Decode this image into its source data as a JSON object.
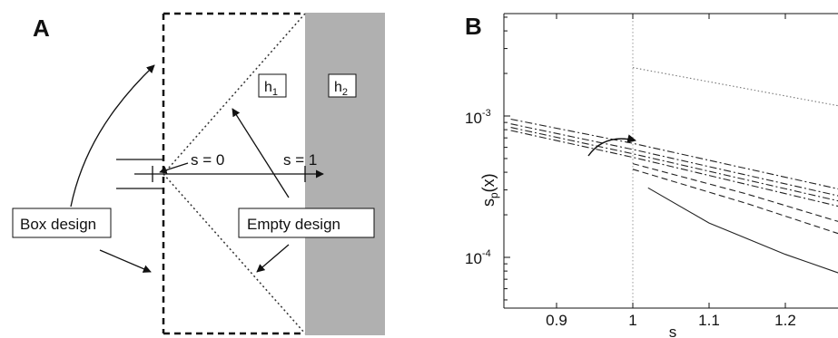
{
  "panel_a": {
    "label": "A",
    "h1": "h",
    "h1_sub": "1",
    "h2": "h",
    "h2_sub": "2",
    "s0": "s = 0",
    "s1": "s = 1",
    "box_design": "Box design",
    "empty_design": "Empty design",
    "colors": {
      "shaded": "#b0b0b0"
    }
  },
  "panel_b": {
    "label": "B",
    "xlabel": "s",
    "ylabel_main": "s",
    "ylabel_sub": "p",
    "ylabel_tail": "(x)",
    "ytick_1e3_base": "10",
    "ytick_1e3_exp": "-3",
    "ytick_1e4_base": "10",
    "ytick_1e4_exp": "-4"
  },
  "chart_data": {
    "type": "line",
    "xlabel": "s",
    "ylabel": "sp(x)",
    "xlim": [
      0.84,
      1.3
    ],
    "ylim": [
      3e-05,
      0.003
    ],
    "yscale": "log",
    "xticks": [
      "0.9",
      "1",
      "1.1",
      "1.2"
    ],
    "yticks": [
      "10-3",
      "10-4"
    ],
    "grid": false,
    "series": [
      {
        "style": "dashdot",
        "x": [
          0.84,
          1.0,
          1.3
        ],
        "y": [
          0.00095,
          0.00064,
          0.00028
        ]
      },
      {
        "style": "dashdot",
        "x": [
          0.84,
          1.0,
          1.3
        ],
        "y": [
          0.00088,
          0.00058,
          0.00025
        ]
      },
      {
        "style": "dashdot",
        "x": [
          0.84,
          1.0,
          1.3
        ],
        "y": [
          0.00083,
          0.00054,
          0.00023
        ]
      },
      {
        "style": "dashdot",
        "x": [
          0.84,
          1.0,
          1.3
        ],
        "y": [
          0.00079,
          0.00051,
          0.00021
        ]
      },
      {
        "style": "dashed",
        "x": [
          1.0,
          1.15,
          1.3
        ],
        "y": [
          0.00046,
          0.00028,
          0.00016
        ]
      },
      {
        "style": "dashed",
        "x": [
          1.0,
          1.15,
          1.3
        ],
        "y": [
          0.00042,
          0.00024,
          0.00013
        ]
      },
      {
        "style": "solid",
        "x": [
          1.02,
          1.1,
          1.2,
          1.3
        ],
        "y": [
          0.00031,
          0.000175,
          0.000105,
          6.8e-05
        ]
      },
      {
        "style": "dotted",
        "x": [
          1.0,
          1.3
        ],
        "y": [
          0.0022,
          0.0011
        ]
      }
    ]
  }
}
